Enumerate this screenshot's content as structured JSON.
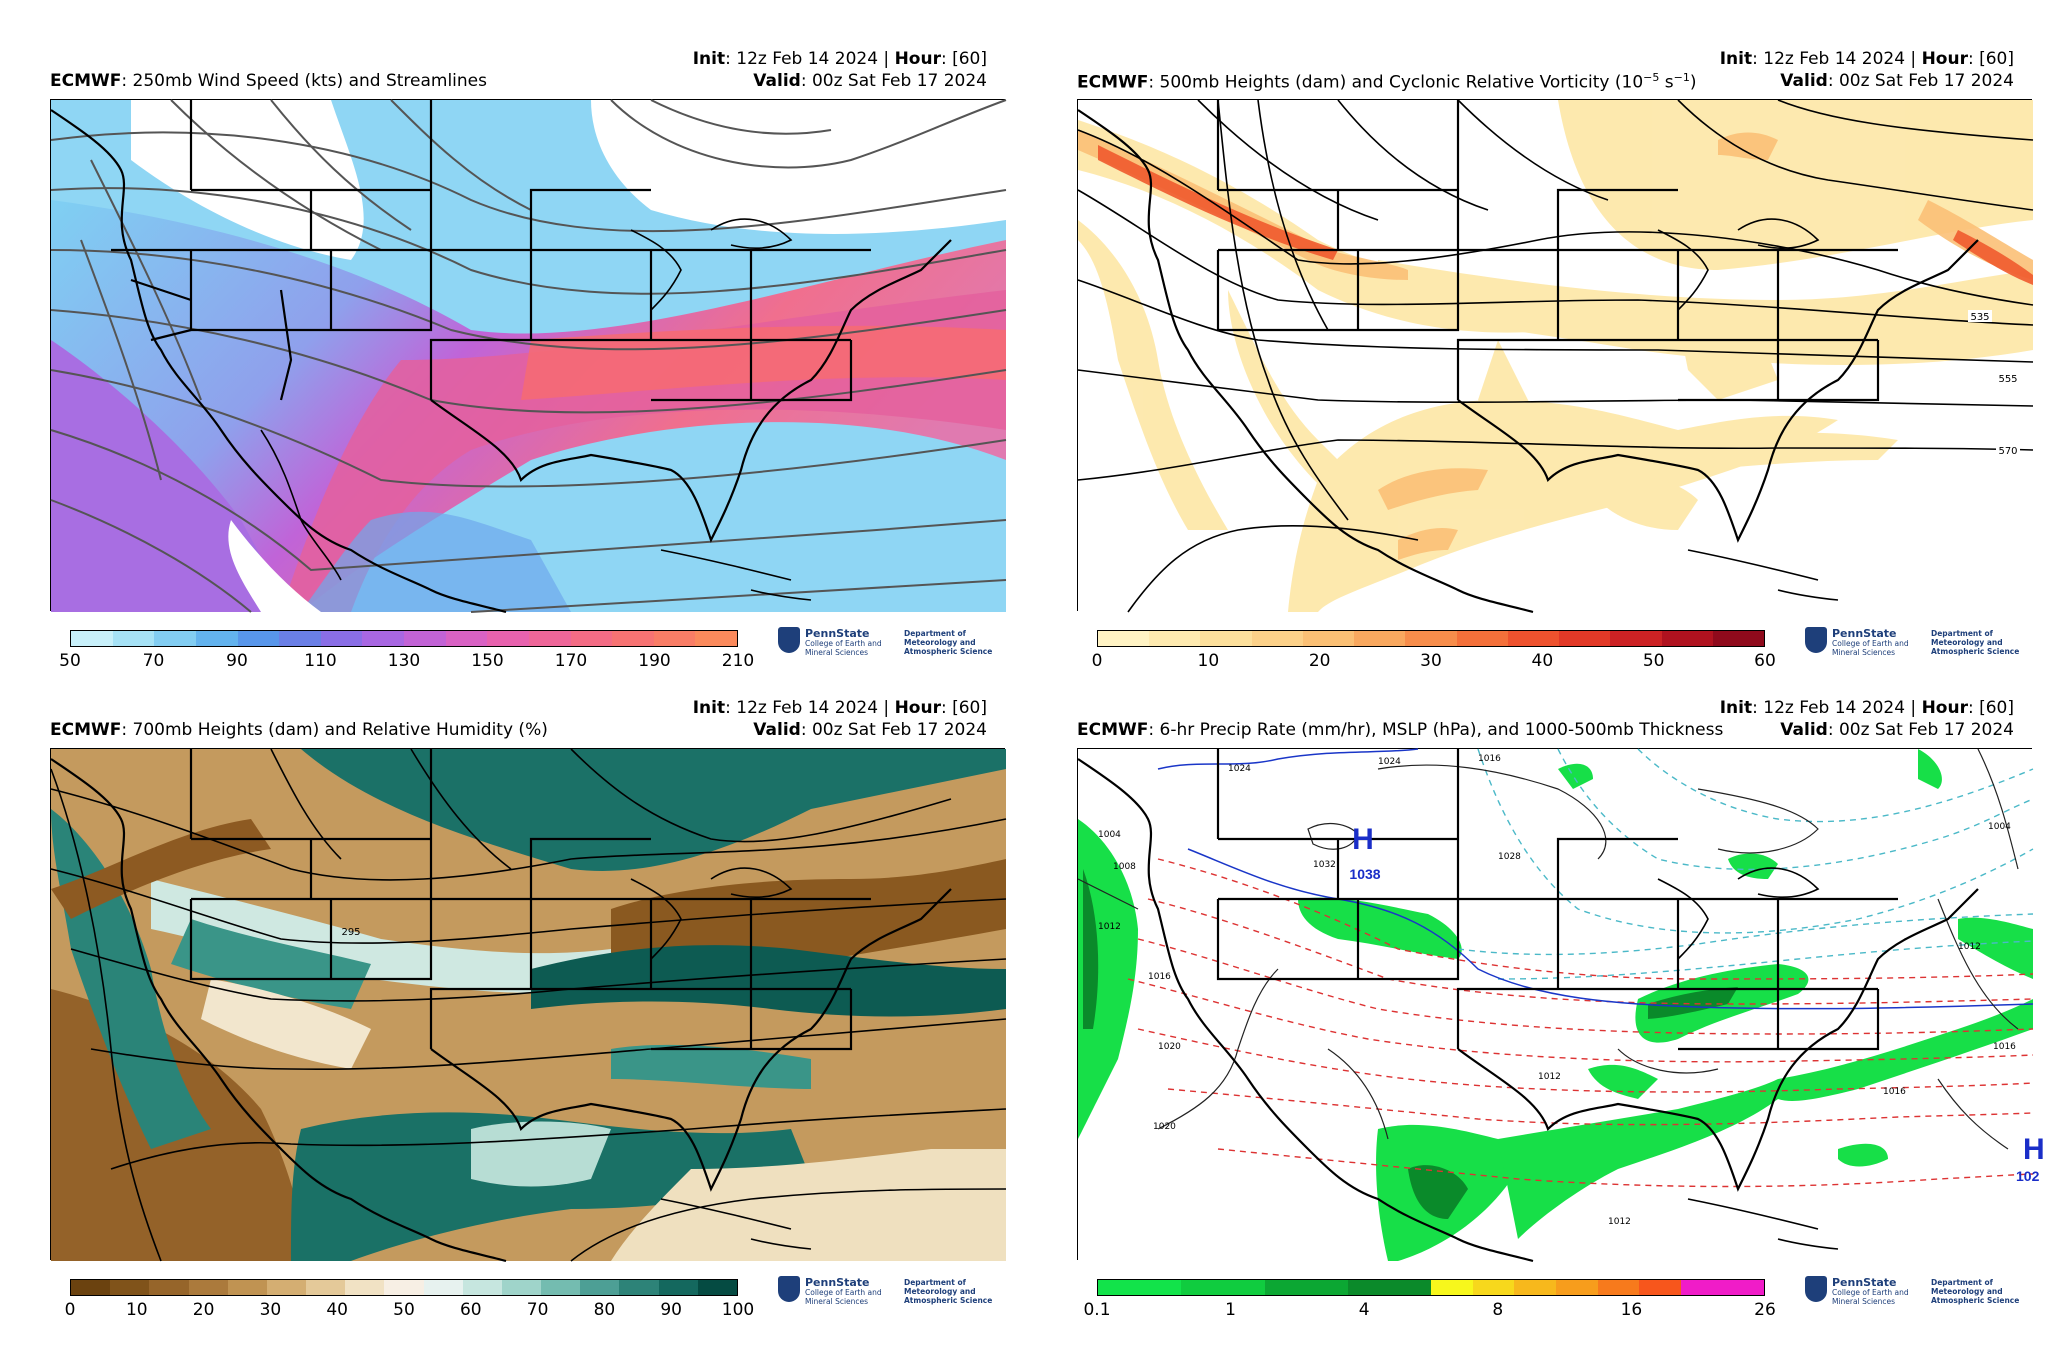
{
  "panels": [
    {
      "init_label": "Init",
      "init_value": ": 12z Feb 14 2024 | ",
      "hour_label": "Hour",
      "hour_value": ": [60]",
      "model": "ECMWF",
      "title": ": 250mb Wind Speed (kts) and Streamlines",
      "valid_label": "Valid",
      "valid_value": ": 00z Sat Feb 17 2024",
      "colorbar_ticks": [
        "50",
        "70",
        "90",
        "110",
        "130",
        "150",
        "170",
        "190",
        "210"
      ],
      "colorbar_colors": [
        "#c8f0fa",
        "#a6e2f6",
        "#82cdf2",
        "#63b3ee",
        "#5896ea",
        "#6a7fe6",
        "#8a6ee6",
        "#a867e2",
        "#c263d6",
        "#d962c4",
        "#e862ae",
        "#ef6699",
        "#f46c85",
        "#f77373",
        "#f97d66",
        "#fb8a5c"
      ],
      "label_contours": []
    },
    {
      "init_label": "Init",
      "init_value": ": 12z Feb 14 2024 | ",
      "hour_label": "Hour",
      "hour_value": ": [60]",
      "model": "ECMWF",
      "title": ": 500mb Heights (dam) and Cyclonic Relative Vorticity (10",
      "title_sup": "−5",
      "title_tail": " s",
      "title_sup2": "−1",
      "title_end": ")",
      "valid_label": "Valid",
      "valid_value": ": 00z Sat Feb 17 2024",
      "colorbar_ticks": [
        "0",
        "10",
        "20",
        "30",
        "40",
        "50",
        "60"
      ],
      "colorbar_colors": [
        "#fff3c4",
        "#feeab0",
        "#fde09c",
        "#fcd189",
        "#fbc075",
        "#f9a85f",
        "#f78d4b",
        "#f4703a",
        "#ee522e",
        "#e23927",
        "#cc2224",
        "#b0121f",
        "#8f0a1c"
      ],
      "contour_labels": [
        "535",
        "555",
        "570"
      ]
    },
    {
      "init_label": "Init",
      "init_value": ": 12z Feb 14 2024 | ",
      "hour_label": "Hour",
      "hour_value": ": [60]",
      "model": "ECMWF",
      "title": ": 700mb Heights (dam) and Relative Humidity (%)",
      "valid_label": "Valid",
      "valid_value": ": 00z Sat Feb 17 2024",
      "colorbar_ticks": [
        "0",
        "10",
        "20",
        "30",
        "40",
        "50",
        "60",
        "70",
        "80",
        "90",
        "100"
      ],
      "colorbar_colors": [
        "#6b420f",
        "#80531a",
        "#96652a",
        "#ab7a3c",
        "#c09352",
        "#d4ae72",
        "#e4c999",
        "#f1e2c4",
        "#f7efe4",
        "#e7f2ef",
        "#c6e6df",
        "#9fd4ca",
        "#74bcb0",
        "#4d9f95",
        "#2d8378",
        "#14685e",
        "#054b42"
      ],
      "contour_labels": [
        "295"
      ]
    },
    {
      "init_label": "Init",
      "init_value": ": 12z Feb 14 2024 | ",
      "hour_label": "Hour",
      "hour_value": ": [60]",
      "model": "ECMWF",
      "title": ": 6-hr Precip Rate (mm/hr), MSLP (hPa), and 1000-500mb Thickness",
      "valid_label": "Valid",
      "valid_value": ": 00z Sat Feb 17 2024",
      "colorbar_ticks": [
        "0.1",
        "1",
        "4",
        "8",
        "16",
        "26"
      ],
      "colorbar_colors": [
        "#12e34a",
        "#12e34a",
        "#10cc3f",
        "#10cc3f",
        "#0ca733",
        "#0ca733",
        "#0b8a2a",
        "#0b8a2a",
        "#f7f71c",
        "#f7d81c",
        "#f7b81c",
        "#f79d1c",
        "#f77a1c",
        "#f7561c",
        "#f01cc8",
        "#f01cc8"
      ],
      "contour_labels": [
        "1024",
        "1024",
        "1016",
        "1004",
        "1008",
        "1012",
        "1016",
        "1020",
        "1032",
        "1028",
        "1004",
        "1012",
        "1016",
        "1012",
        "1020",
        "1012",
        "1016"
      ],
      "high_centers": [
        {
          "symbol": "H",
          "value": "1038"
        },
        {
          "symbol": "H",
          "value": "102"
        }
      ]
    }
  ],
  "logo": {
    "name": "PennState",
    "college": "College of Earth and Mineral Sciences",
    "dept": "Department of Meteorology and Atmospheric Science"
  }
}
